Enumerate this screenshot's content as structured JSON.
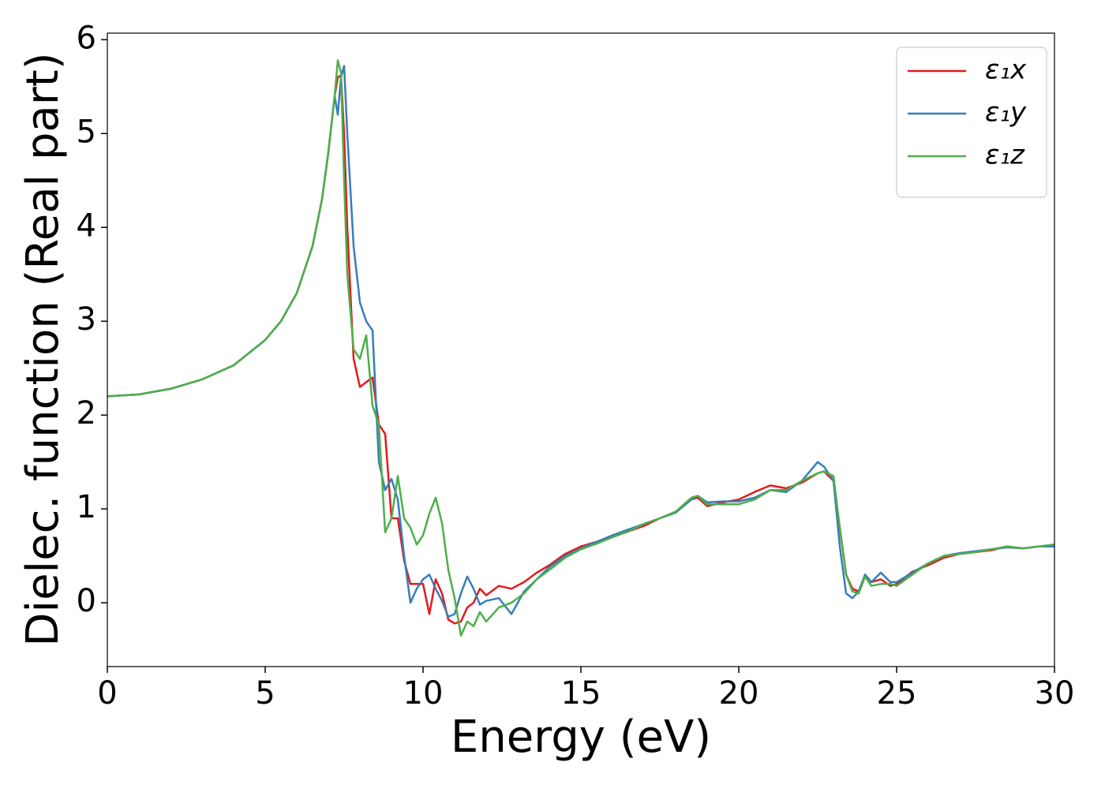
{
  "chart_data": {
    "type": "line",
    "xlabel": "Energy (eV)",
    "ylabel": "Dielec. function (Real part)",
    "x": [
      0,
      1,
      2,
      3,
      4,
      5,
      5.5,
      6,
      6.5,
      6.8,
      7,
      7.2,
      7.3,
      7.4,
      7.5,
      7.6,
      7.8,
      8,
      8.2,
      8.4,
      8.6,
      8.8,
      9,
      9.2,
      9.4,
      9.6,
      9.8,
      10,
      10.2,
      10.4,
      10.6,
      10.8,
      11,
      11.2,
      11.4,
      11.6,
      11.8,
      12,
      12.4,
      12.8,
      13.2,
      13.6,
      14,
      14.5,
      15,
      15.5,
      16,
      16.5,
      17,
      17.5,
      18,
      18.5,
      18.7,
      19,
      19.5,
      20,
      20.5,
      21,
      21.5,
      22,
      22.5,
      22.7,
      23,
      23.2,
      23.4,
      23.6,
      23.8,
      24,
      24.2,
      24.5,
      24.8,
      25,
      25.5,
      26,
      26.5,
      27,
      27.5,
      28,
      28.5,
      29,
      29.5,
      30
    ],
    "series": [
      {
        "name": "ε₁x",
        "color": "#e41a1c",
        "values": [
          2.2,
          2.22,
          2.28,
          2.38,
          2.53,
          2.8,
          3.0,
          3.3,
          3.8,
          4.3,
          4.8,
          5.4,
          5.6,
          5.62,
          5.0,
          4.0,
          2.6,
          2.3,
          2.35,
          2.4,
          1.9,
          1.8,
          0.9,
          0.9,
          0.45,
          0.2,
          0.2,
          0.2,
          -0.12,
          0.25,
          0.1,
          -0.18,
          -0.22,
          -0.2,
          -0.05,
          0,
          0.15,
          0.08,
          0.18,
          0.15,
          0.22,
          0.32,
          0.4,
          0.52,
          0.6,
          0.65,
          0.7,
          0.76,
          0.82,
          0.9,
          0.97,
          1.1,
          1.12,
          1.03,
          1.07,
          1.1,
          1.18,
          1.25,
          1.22,
          1.28,
          1.38,
          1.4,
          1.3,
          0.8,
          0.3,
          0.15,
          0.12,
          0.3,
          0.22,
          0.25,
          0.18,
          0.2,
          0.33,
          0.4,
          0.48,
          0.52,
          0.54,
          0.56,
          0.6,
          0.58,
          0.6,
          0.6
        ]
      },
      {
        "name": "ε₁y",
        "color": "#377eb8",
        "values": [
          2.2,
          2.22,
          2.28,
          2.38,
          2.53,
          2.8,
          3.0,
          3.3,
          3.8,
          4.3,
          4.8,
          5.4,
          5.2,
          5.6,
          5.72,
          5.0,
          3.8,
          3.2,
          3.0,
          2.9,
          1.5,
          1.2,
          1.32,
          1.1,
          0.5,
          0,
          0.15,
          0.25,
          0.3,
          0.15,
          0.02,
          -0.15,
          -0.12,
          0.1,
          0.28,
          0.15,
          -0.02,
          0.02,
          0.05,
          -0.12,
          0.12,
          0.25,
          0.38,
          0.5,
          0.58,
          0.65,
          0.72,
          0.78,
          0.84,
          0.9,
          0.96,
          1.1,
          1.14,
          1.07,
          1.08,
          1.08,
          1.12,
          1.2,
          1.18,
          1.3,
          1.5,
          1.45,
          1.3,
          0.6,
          0.1,
          0.05,
          0.12,
          0.3,
          0.22,
          0.32,
          0.22,
          0.22,
          0.32,
          0.42,
          0.5,
          0.53,
          0.55,
          0.57,
          0.59,
          0.58,
          0.6,
          0.6
        ]
      },
      {
        "name": "ε₁z",
        "color": "#4daf4a",
        "values": [
          2.2,
          2.22,
          2.28,
          2.38,
          2.53,
          2.8,
          3.0,
          3.3,
          3.8,
          4.3,
          4.8,
          5.4,
          5.78,
          5.65,
          4.5,
          3.5,
          2.7,
          2.6,
          2.85,
          2.1,
          1.9,
          0.75,
          0.9,
          1.35,
          0.9,
          0.8,
          0.62,
          0.72,
          0.95,
          1.12,
          0.85,
          0.35,
          0.05,
          -0.35,
          -0.2,
          -0.25,
          -0.1,
          -0.2,
          -0.05,
          0,
          0.1,
          0.25,
          0.35,
          0.48,
          0.57,
          0.63,
          0.7,
          0.76,
          0.84,
          0.9,
          0.97,
          1.12,
          1.14,
          1.05,
          1.05,
          1.05,
          1.1,
          1.2,
          1.2,
          1.3,
          1.38,
          1.4,
          1.35,
          0.8,
          0.3,
          0.12,
          0.1,
          0.28,
          0.18,
          0.2,
          0.2,
          0.18,
          0.3,
          0.42,
          0.5,
          0.52,
          0.54,
          0.57,
          0.6,
          0.58,
          0.6,
          0.62
        ]
      }
    ],
    "xlim": [
      0,
      30
    ],
    "xticks": [
      0,
      5,
      10,
      15,
      20,
      25,
      30
    ],
    "ylim": [
      -0.68,
      6.07
    ],
    "yticks": [
      0,
      1,
      2,
      3,
      4,
      5,
      6
    ],
    "grid": false,
    "legend": "upper right"
  }
}
